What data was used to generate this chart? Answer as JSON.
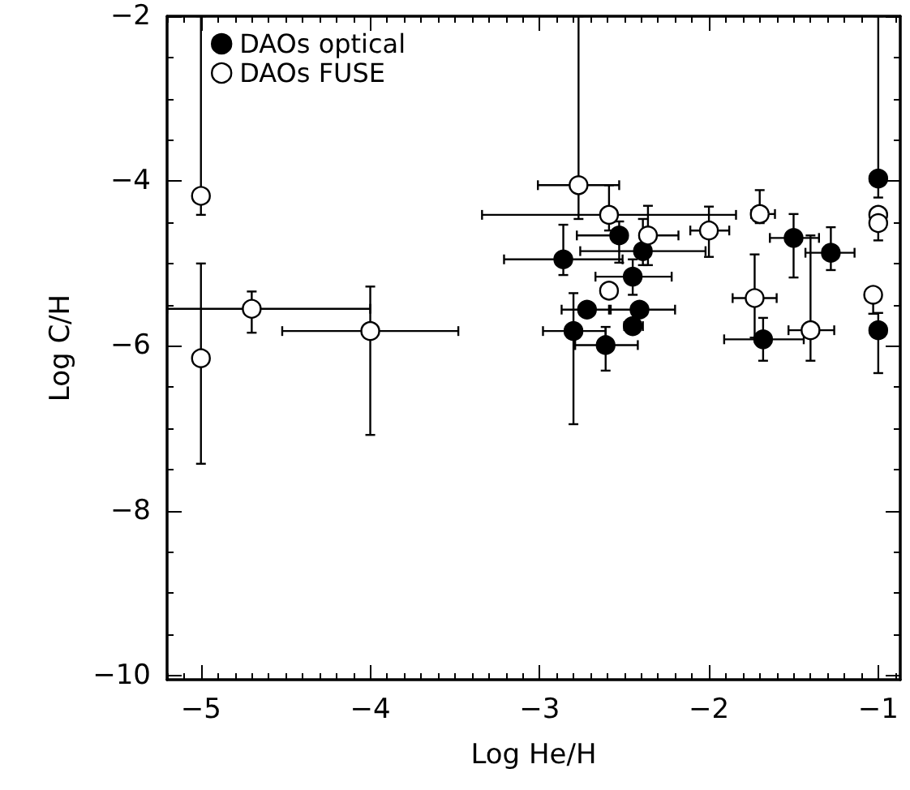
{
  "chart_data": {
    "type": "scatter",
    "xlabel": "Log He/H",
    "ylabel": "Log C/H",
    "xlim": [
      -5.2,
      -0.87
    ],
    "ylim": [
      -10.05,
      -2
    ],
    "xticks": [
      -5,
      -4,
      -3,
      -2,
      -1
    ],
    "yticks": [
      -10,
      -8,
      -6,
      -4,
      -2
    ],
    "grid": false,
    "legend": "top left",
    "marker": "circle",
    "series": [
      {
        "name": "DAOs optical",
        "color": "#000000",
        "x": [
          -2.53,
          -2.86,
          -2.39,
          -2.45,
          -2.72,
          -2.41,
          -2.45,
          -2.8,
          -2.61,
          -1.68,
          -1.5,
          -1.28,
          -1.0,
          -1.0
        ],
        "values": [
          -4.66,
          -4.95,
          -4.85,
          -5.16,
          -5.56,
          -5.56,
          -5.76,
          -5.82,
          -5.99,
          -5.92,
          -4.69,
          -4.87,
          -3.97,
          -5.81
        ],
        "errors": [
          [
            -4.99,
            -4.49
          ],
          [
            -5.14,
            -4.53
          ],
          [
            -5.02,
            -4.46
          ],
          [
            -5.38,
            -4.95
          ],
          null,
          null,
          null,
          [
            -6.95,
            -5.36
          ],
          [
            -6.3,
            -5.77
          ],
          [
            -6.18,
            -5.66
          ],
          [
            -5.17,
            -4.4
          ],
          [
            -5.08,
            -4.56
          ],
          [
            -4.2,
            -2
          ],
          [
            -6.33,
            -5.6
          ]
        ],
        "xerrors": [
          [
            -2.78,
            -2.53
          ],
          [
            -3.21,
            -2.51
          ],
          [
            -2.76,
            -2.02
          ],
          [
            -2.67,
            -2.22
          ],
          [
            -2.87,
            -2.58
          ],
          [
            -2.59,
            -2.2
          ],
          [
            -2.5,
            -2.39
          ],
          [
            -2.98,
            -2.61
          ],
          [
            -2.79,
            -2.42
          ],
          [
            -1.91,
            -1.44
          ],
          [
            -1.64,
            -1.35
          ],
          [
            -1.43,
            -1.14
          ],
          null,
          null
        ]
      },
      {
        "name": "DAOs FUSE",
        "color": "#ffffff",
        "x": [
          -5.0,
          -5.0,
          -4.7,
          -4.0,
          -2.77,
          -2.59,
          -2.36,
          -2.0,
          -1.7,
          -1.0,
          -1.0,
          -2.59,
          -1.73,
          -1.4,
          -1.03
        ],
        "values": [
          -4.18,
          -6.15,
          -5.55,
          -5.82,
          -4.05,
          -4.41,
          -4.66,
          -4.6,
          -4.4,
          -4.41,
          -4.51,
          -5.33,
          -5.42,
          -5.81,
          -5.38
        ],
        "errors": [
          [
            -4.41,
            -2
          ],
          [
            -7.43,
            -5.0
          ],
          [
            -5.84,
            -5.34
          ],
          [
            -7.08,
            -5.28
          ],
          [
            -4.46,
            -2
          ],
          [
            -4.6,
            -4.05
          ],
          [
            -5.02,
            -4.3
          ],
          [
            -4.92,
            -4.31
          ],
          [
            -4.51,
            -4.11
          ],
          null,
          [
            -4.72,
            -4.41
          ],
          null,
          [
            -5.9,
            -4.89
          ],
          [
            -6.18,
            -4.66
          ],
          [
            -5.61,
            -5.38
          ]
        ],
        "xerrors": [
          null,
          null,
          [
            -5.2,
            -4.0
          ],
          [
            -4.52,
            -3.48
          ],
          [
            -3.01,
            -2.53
          ],
          [
            -3.34,
            -1.84
          ],
          [
            -2.36,
            -2.18
          ],
          [
            -2.11,
            -1.88
          ],
          [
            -1.75,
            -1.61
          ],
          null,
          null,
          null,
          [
            -1.86,
            -1.6
          ],
          [
            -1.53,
            -1.26
          ],
          null
        ]
      }
    ]
  }
}
